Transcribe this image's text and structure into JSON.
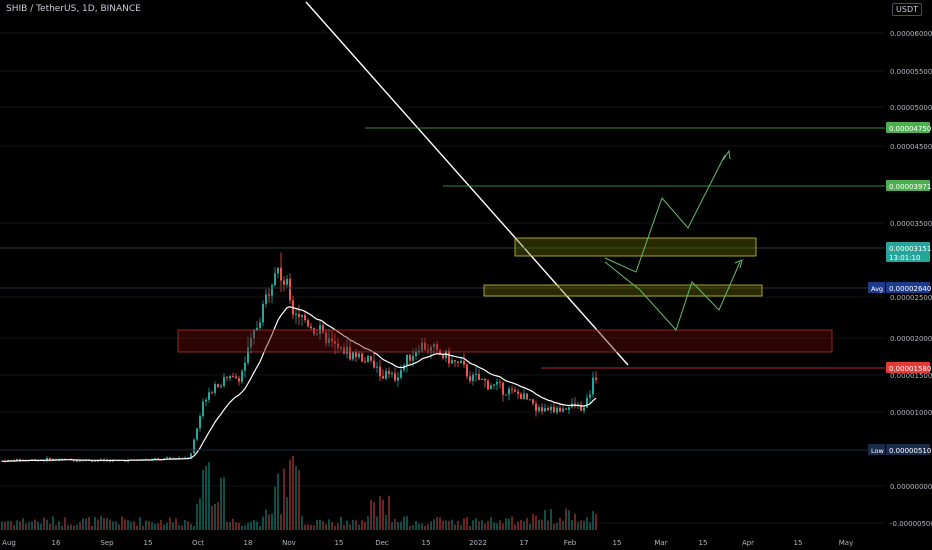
{
  "header": {
    "title": "SHIB / TetherUS, 1D, BINANCE",
    "currency_button": "USDT"
  },
  "chart_data": {
    "type": "candlestick",
    "symbol": "SHIB / TetherUS",
    "interval": "1D",
    "exchange": "BINANCE",
    "y_ticks": [
      "0.00006000",
      "0.00005500",
      "0.00005000",
      "0.00004500",
      "0.00003500",
      "0.00002500",
      "0.00002000",
      "0.00001500",
      "0.00001000",
      "0.00000000",
      "-0.00000500"
    ],
    "x_ticks": [
      "Aug",
      "16",
      "Sep",
      "15",
      "Oct",
      "18",
      "Nov",
      "15",
      "Dec",
      "15",
      "2022",
      "17",
      "Feb",
      "15",
      "Mar",
      "15",
      "Apr",
      "15",
      "May"
    ],
    "price_labels": [
      {
        "id": "level-4750",
        "text": "0.00004750",
        "color": "#4caf50"
      },
      {
        "id": "level-3971",
        "text": "0.00003971",
        "color": "#4caf50"
      },
      {
        "id": "last-price",
        "text": "0.00003151",
        "sub": "13:01:10",
        "color": "#26a69a"
      },
      {
        "id": "avg",
        "prefix": "Avg",
        "text": "0.00002640",
        "color": "#1e3a8a"
      },
      {
        "id": "level-1580",
        "text": "0.00001580",
        "color": "#e53935"
      },
      {
        "id": "low",
        "prefix": "Low",
        "text": "0.00000510",
        "color": "#1a2a4a"
      }
    ],
    "series": [
      {
        "kind": "price",
        "approx_closes": [
          6.8e-06,
          7.2e-06,
          7.2e-06,
          7.3e-06,
          7.1e-06,
          7e-06,
          7e-06,
          7.2e-06,
          7.3e-06,
          8e-06,
          2.5e-05,
          2.8e-05,
          3e-05,
          5.5e-05,
          6e-05,
          5.2e-05,
          4.7e-05,
          4.3e-05,
          3.8e-05,
          3.6e-05,
          3.4e-05,
          3.1e-05,
          3e-05,
          3.9e-05,
          3.6e-05,
          3.3e-05,
          3e-05,
          2.9e-05,
          2.7e-05,
          2.5e-05,
          2.1e-05,
          2.1e-05,
          2.2e-05,
          2.1e-05,
          3.1e-05
        ]
      },
      {
        "kind": "moving_average",
        "color": "#ffffff"
      }
    ],
    "annotations": [
      "descending trendline",
      "resistance zone",
      "support zone",
      "demand zone",
      "projected paths"
    ]
  }
}
